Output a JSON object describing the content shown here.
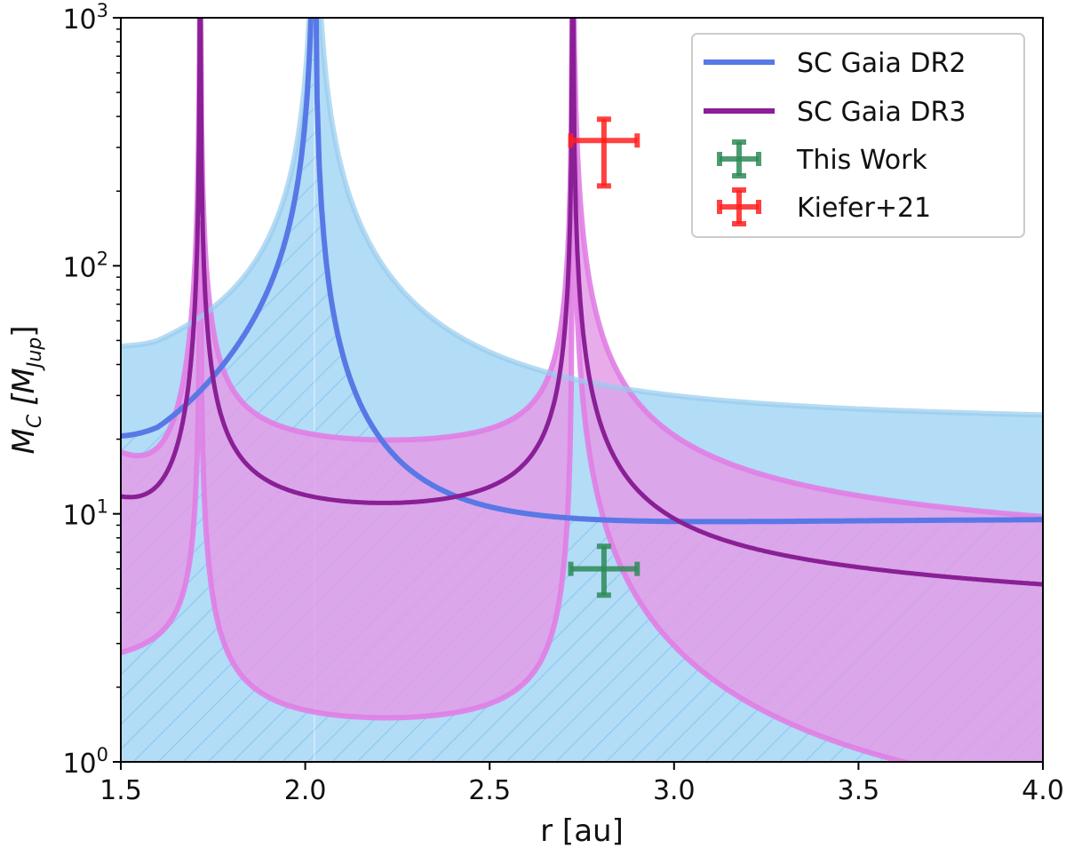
{
  "chart_data": {
    "type": "line",
    "title": "",
    "xlabel": "r [au]",
    "ylabel_main": "M",
    "ylabel_sub": "C",
    "ylabel_bracket_open": "[M",
    "ylabel_bracket_sub": "Jup",
    "ylabel_bracket_close": "]",
    "xlim": [
      1.5,
      4.0
    ],
    "ylim": [
      1,
      1000
    ],
    "yscale": "log",
    "grid": false,
    "x_ticks": [
      "1.5",
      "2.0",
      "2.5",
      "3.0",
      "3.5",
      "4.0"
    ],
    "y_ticks": [
      {
        "base": "10",
        "exp": "0",
        "value": 1
      },
      {
        "base": "10",
        "exp": "1",
        "value": 10
      },
      {
        "base": "10",
        "exp": "2",
        "value": 100
      },
      {
        "base": "10",
        "exp": "3",
        "value": 1000
      }
    ],
    "legend_position": "top-right",
    "colors": {
      "dr2_line": "#5878e6",
      "dr2_band": "#b3dcf7",
      "dr2_band_edge": "#99ccee",
      "dr3_line": "#8a1f96",
      "dr3_band": "#e49ae7",
      "dr3_band_edge": "#e07ee4",
      "this_work": "#2e8b57",
      "kiefer": "#ff2020"
    },
    "series": [
      {
        "name": "SC Gaia DR2",
        "kind": "line",
        "line_min": 20.8,
        "r_min": 1.6,
        "asymptote": 2.025,
        "band_upper_min": 41.5,
        "band_upper_tail": 18.5
      },
      {
        "name": "SC Gaia DR3",
        "kind": "line",
        "line_min": 10.7,
        "r_min": 2.11,
        "asymptotes": [
          1.715,
          2.725
        ],
        "band_low_min": 2.0,
        "band_high_min": 19.0
      },
      {
        "name": "This Work",
        "kind": "point",
        "x": 2.81,
        "y": 6.0,
        "xerr": 0.09,
        "yerr_low": 1.3,
        "yerr_high": 1.4
      },
      {
        "name": "Kiefer+21",
        "kind": "point",
        "x": 2.81,
        "y": 320,
        "xerr": 0.09,
        "yerr_low": 110,
        "yerr_high": 70
      }
    ]
  }
}
